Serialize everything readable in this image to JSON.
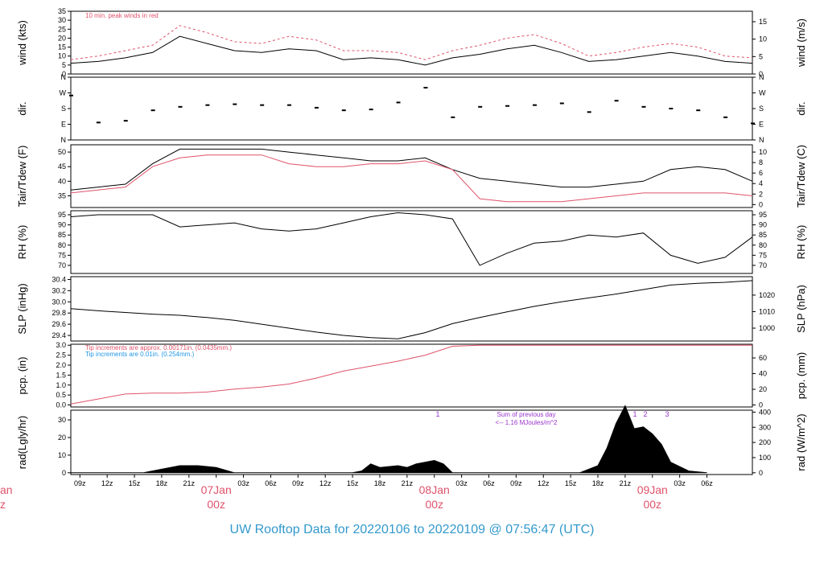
{
  "title": "UW Rooftop Data for 20220106  to  20220109 @ 07:56:47  (UTC)",
  "colors": {
    "primary": "#000000",
    "peak": "#df536b",
    "note_blue": "#2297e6",
    "note_purple": "#9933cc",
    "date_label": "#df536b",
    "title": "#3399cc"
  },
  "x_axis": {
    "ticks": [
      "09z",
      "12z",
      "15z",
      "18z",
      "21z",
      "03z",
      "06z",
      "09z",
      "12z",
      "15z",
      "18z",
      "21z",
      "03z",
      "06z",
      "09z",
      "12z",
      "15z",
      "18z",
      "21z",
      "03z",
      "06z"
    ],
    "date_labels": [
      {
        "date": "07Jan",
        "time": "00z"
      },
      {
        "date": "08Jan",
        "time": "00z"
      },
      {
        "date": "09Jan",
        "time": "00z"
      }
    ],
    "cut_left": {
      "date": "an",
      "time": "z"
    }
  },
  "chart_data": [
    {
      "type": "line",
      "ylabel": "wind (kts)",
      "ylabel_right": "wind (m/s)",
      "ylim": [
        0,
        35
      ],
      "yticks": [
        0,
        5,
        10,
        15,
        20,
        25,
        30,
        35
      ],
      "ylim_right": [
        0,
        18
      ],
      "yticks_right": [
        0,
        5,
        10,
        15
      ],
      "annotation": "10 min. peak winds in red",
      "series": [
        {
          "name": "wind",
          "x": [
            0,
            3,
            6,
            9,
            12,
            15,
            18,
            21,
            24,
            27,
            30,
            33,
            36,
            39,
            42,
            45,
            48,
            51,
            54,
            57,
            60,
            63,
            66,
            69,
            72,
            75
          ],
          "y": [
            6,
            7,
            9,
            12,
            21,
            17,
            13,
            12,
            14,
            13,
            8,
            9,
            8,
            5,
            9,
            11,
            14,
            16,
            12,
            7,
            8,
            10,
            12,
            10,
            7,
            6
          ]
        },
        {
          "name": "peak",
          "x": [
            0,
            3,
            6,
            9,
            12,
            15,
            18,
            21,
            24,
            27,
            30,
            33,
            36,
            39,
            42,
            45,
            48,
            51,
            54,
            57,
            60,
            63,
            66,
            69,
            72,
            75
          ],
          "y": [
            8,
            10,
            13,
            16,
            27,
            23,
            18,
            17,
            21,
            19,
            13,
            13,
            12,
            8,
            13,
            16,
            20,
            22,
            17,
            10,
            12,
            15,
            17,
            15,
            10,
            9
          ]
        }
      ]
    },
    {
      "type": "scatter",
      "ylabel": "dir.",
      "ylabel_right": "dir.",
      "yticks": [
        "N",
        "E",
        "S",
        "W",
        "N"
      ],
      "ylim": [
        0,
        360
      ],
      "series": [
        {
          "x": [
            0,
            3,
            6,
            9,
            12,
            15,
            18,
            21,
            24,
            27,
            30,
            33,
            36,
            39,
            42,
            45,
            48,
            51,
            54,
            57,
            60,
            63,
            66,
            69,
            72,
            75
          ],
          "y": [
            255,
            100,
            110,
            170,
            190,
            200,
            205,
            200,
            200,
            185,
            170,
            175,
            215,
            300,
            130,
            190,
            195,
            200,
            210,
            160,
            225,
            190,
            180,
            170,
            130,
            95
          ]
        }
      ]
    },
    {
      "type": "line",
      "ylabel": "Tair/Tdew (F)",
      "ylabel_right": "Tair/Tdew (C)",
      "ylim": [
        31,
        52.5
      ],
      "yticks": [
        35,
        40,
        45,
        50
      ],
      "ylim_right": [
        -0.56,
        11.39
      ],
      "yticks_right": [
        0,
        2,
        4,
        6,
        8,
        10
      ],
      "series": [
        {
          "name": "Tair",
          "x": [
            0,
            3,
            6,
            9,
            12,
            15,
            18,
            21,
            24,
            27,
            30,
            33,
            36,
            39,
            42,
            45,
            48,
            51,
            54,
            57,
            60,
            63,
            66,
            69,
            72,
            75
          ],
          "y": [
            37,
            38,
            39,
            46,
            51,
            51,
            51,
            51,
            50,
            49,
            48,
            47,
            47,
            48,
            44,
            41,
            40,
            39,
            38,
            38,
            39,
            40,
            44,
            45,
            44,
            40
          ]
        },
        {
          "name": "Tdew",
          "x": [
            0,
            3,
            6,
            9,
            12,
            15,
            18,
            21,
            24,
            27,
            30,
            33,
            36,
            39,
            42,
            45,
            48,
            51,
            54,
            57,
            60,
            63,
            66,
            69,
            72,
            75
          ],
          "y": [
            36,
            37,
            38,
            45,
            48,
            49,
            49,
            49,
            46,
            45,
            45,
            46,
            46,
            47,
            44,
            34,
            33,
            33,
            33,
            34,
            35,
            36,
            36,
            36,
            36,
            35
          ]
        }
      ]
    },
    {
      "type": "line",
      "ylabel": "RH (%)",
      "ylabel_right": "RH (%)",
      "ylim": [
        66,
        97
      ],
      "yticks": [
        70,
        75,
        80,
        85,
        90,
        95
      ],
      "series": [
        {
          "x": [
            0,
            3,
            6,
            9,
            12,
            15,
            18,
            21,
            24,
            27,
            30,
            33,
            36,
            39,
            42,
            45,
            48,
            51,
            54,
            57,
            60,
            63,
            66,
            69,
            72,
            75
          ],
          "y": [
            94,
            95,
            95,
            95,
            89,
            90,
            91,
            88,
            87,
            88,
            91,
            94,
            96,
            95,
            93,
            70,
            76,
            81,
            82,
            85,
            84,
            86,
            75,
            71,
            74,
            84
          ]
        }
      ]
    },
    {
      "type": "line",
      "ylabel": "SLP (inHg)",
      "ylabel_right": "SLP (hPa)",
      "ylim": [
        29.3,
        30.45
      ],
      "yticks": [
        29.4,
        29.6,
        29.8,
        30.0,
        30.2,
        30.4
      ],
      "yticks_right": [
        1000,
        1010,
        1020
      ],
      "series": [
        {
          "x": [
            0,
            3,
            6,
            9,
            12,
            15,
            18,
            21,
            24,
            27,
            30,
            33,
            36,
            39,
            42,
            45,
            48,
            51,
            54,
            57,
            60,
            63,
            66,
            69,
            72,
            75
          ],
          "y": [
            29.88,
            29.84,
            29.81,
            29.78,
            29.76,
            29.72,
            29.67,
            29.6,
            29.53,
            29.46,
            29.4,
            29.36,
            29.34,
            29.45,
            29.61,
            29.72,
            29.82,
            29.92,
            30.0,
            30.07,
            30.14,
            30.22,
            30.3,
            30.33,
            30.35,
            30.38
          ]
        }
      ]
    },
    {
      "type": "line",
      "ylabel": "pcp. (in)",
      "ylabel_right": "pcp. (mm)",
      "ylim": [
        -0.1,
        3.05
      ],
      "yticks": [
        0.0,
        0.5,
        1.0,
        1.5,
        2.0,
        2.5,
        3.0
      ],
      "yticks_right": [
        0,
        20,
        40,
        60
      ],
      "annotations": [
        "Tip increments are approx. 0.00171in. (0.0435mm.)",
        "Tip increments are 0.01in. (0.254mm.)"
      ],
      "series": [
        {
          "x": [
            0,
            3,
            6,
            9,
            12,
            15,
            18,
            21,
            24,
            27,
            30,
            33,
            36,
            39,
            42,
            45,
            48,
            51,
            54,
            57,
            60,
            63,
            66,
            69,
            72,
            75
          ],
          "y": [
            0.05,
            0.3,
            0.55,
            0.6,
            0.6,
            0.65,
            0.8,
            0.9,
            1.05,
            1.35,
            1.7,
            1.95,
            2.2,
            2.5,
            2.95,
            3.0,
            3.0,
            3.0,
            3.0,
            3.0,
            3.0,
            3.0,
            3.0,
            3.0,
            3.0,
            3.0
          ]
        }
      ]
    },
    {
      "type": "area",
      "ylabel": "rad(Lgly/hr)",
      "ylabel_right": "rad (W/m^2)",
      "ylim": [
        -1,
        35.5
      ],
      "yticks": [
        0,
        10,
        20,
        30
      ],
      "yticks_right": [
        0,
        100,
        200,
        300,
        400
      ],
      "markers": [
        "1",
        "1",
        "2",
        "3"
      ],
      "annotation": [
        "Sum of previous day",
        "<-- 1.16 MJoules/m^2"
      ],
      "series": [
        {
          "x": [
            0,
            6,
            8,
            10,
            12,
            14,
            16,
            18,
            31,
            32,
            33,
            34,
            36,
            37,
            38,
            40,
            41,
            42,
            56,
            58,
            59,
            60,
            61,
            62,
            63,
            64,
            65,
            66,
            68,
            70
          ],
          "y": [
            0,
            0,
            0,
            2,
            4,
            4,
            3,
            0,
            0,
            1,
            5,
            3,
            4,
            3,
            5,
            7,
            5,
            0,
            0,
            4,
            14,
            28,
            38,
            25,
            26,
            22,
            16,
            6,
            1,
            0
          ]
        }
      ]
    }
  ]
}
